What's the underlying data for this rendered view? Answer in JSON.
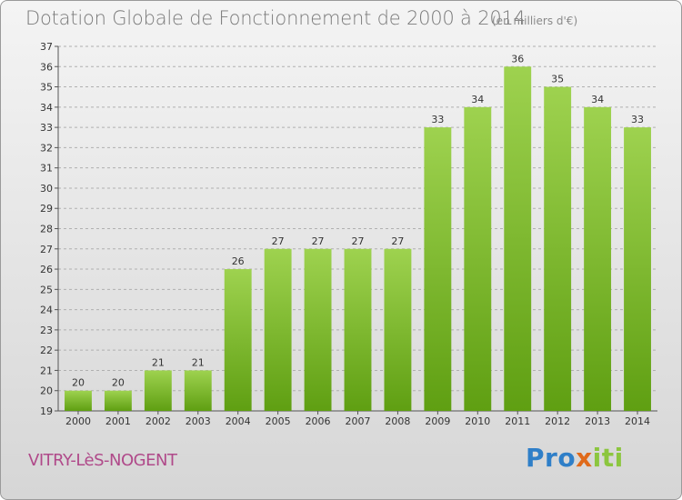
{
  "header": {
    "title": "Dotation Globale de Fonctionnement de 2000 à 2014",
    "subtitle": "(en milliers d'€)"
  },
  "footer": {
    "commune": "VITRY-LèS-NOGENT",
    "logo_letters": [
      {
        "ch": "P",
        "color": "#2f7fc8"
      },
      {
        "ch": "r",
        "color": "#2f7fc8"
      },
      {
        "ch": "o",
        "color": "#2f7fc8"
      },
      {
        "ch": "x",
        "color": "#e06a1a"
      },
      {
        "ch": "i",
        "color": "#8cc63f"
      },
      {
        "ch": "t",
        "color": "#8cc63f"
      },
      {
        "ch": "i",
        "color": "#8cc63f"
      }
    ]
  },
  "colors": {
    "bar_top": "#9ed24f",
    "bar_bottom": "#5f9f12",
    "grid": "#b0b0b0",
    "axis": "#555555"
  },
  "chart_data": {
    "type": "bar",
    "title": "Dotation Globale de Fonctionnement de 2000 à 2014",
    "subtitle": "(en milliers d'€)",
    "xlabel": "",
    "ylabel": "",
    "categories": [
      "2000",
      "2001",
      "2002",
      "2003",
      "2004",
      "2005",
      "2006",
      "2007",
      "2008",
      "2009",
      "2010",
      "2011",
      "2012",
      "2013",
      "2014"
    ],
    "values": [
      20,
      20,
      21,
      21,
      26,
      27,
      27,
      27,
      27,
      33,
      34,
      36,
      35,
      34,
      33
    ],
    "ylim": [
      19,
      37
    ],
    "yticks": [
      19,
      20,
      21,
      22,
      23,
      24,
      25,
      26,
      27,
      28,
      29,
      30,
      31,
      32,
      33,
      34,
      35,
      36,
      37
    ],
    "grid": true,
    "grid_style": "dashed-horizontal",
    "legend": "none",
    "data_labels": true
  }
}
